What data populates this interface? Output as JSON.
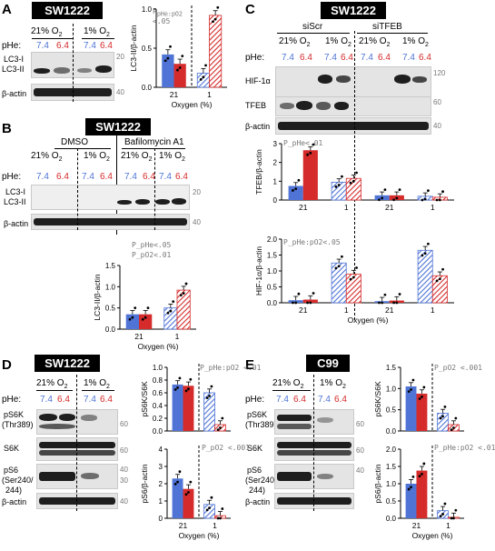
{
  "panels": {
    "A": {
      "letter": "A",
      "title": "SW1222"
    },
    "B": {
      "letter": "B",
      "title": "SW1222",
      "cond1": "DMSO",
      "cond2": "Bafilomycin A1"
    },
    "C": {
      "letter": "C",
      "title": "SW1222",
      "cond1": "siScr",
      "cond2": "siTFEB"
    },
    "D": {
      "letter": "D",
      "title": "SW1222"
    },
    "E": {
      "letter": "E",
      "title": "C99"
    }
  },
  "labels": {
    "o2_21": "21% O",
    "o2_1": "1% O",
    "sub2": "2",
    "phe": "pHe:",
    "ph74": "7.4",
    "ph64": "6.4",
    "lc3": "LC3-I\nLC3-II",
    "lc3_1": "LC3-I",
    "lc3_2": "LC3-II",
    "bactin": "β-actin",
    "hif": "HIF-1α",
    "tfeb": "TFEB",
    "ps6k1": "pS6K",
    "ps6k2": "(Thr389)",
    "s6k": "S6K",
    "ps6_1": "pS6",
    "ps6_2": "(Ser240/",
    "ps6_3": "244)",
    "oxygen": "Oxygen (%)",
    "x21": "21",
    "x1": "1"
  },
  "mw": {
    "m20": "20",
    "m40": "40",
    "m120": "120",
    "m60": "60",
    "m30": "30"
  },
  "stats": {
    "A": [
      "P",
      "pHe:pO2",
      "<.05"
    ],
    "B1": "P_pHe<.05",
    "B2": "P_pO2<.01",
    "C1": "P_pHe<.01",
    "C2": "P_pHe:pO2<.05",
    "D1": "P_pHe:pO2 <.01",
    "D2": "P_pO2 <.001",
    "E1": "P_pO2 <.001",
    "E2": "P_pHe:pO2 <.01"
  },
  "colors": {
    "blue": "#4f74d6",
    "red": "#d52b2b"
  },
  "chart_data": [
    {
      "panel": "A",
      "type": "bar",
      "ylabel": "LC3-II/β-actin",
      "ylim": [
        0,
        1.0
      ],
      "yticks": [
        0,
        0.5,
        1.0
      ],
      "categories": [
        "21",
        "1"
      ],
      "series": [
        {
          "name": "7.4",
          "values": [
            0.42,
            0.18
          ]
        },
        {
          "name": "6.4",
          "values": [
            0.3,
            0.92
          ]
        }
      ]
    },
    {
      "panel": "B",
      "type": "bar",
      "ylabel": "LC3-II/β-actin",
      "ylim": [
        0,
        1.5
      ],
      "yticks": [
        0,
        0.5,
        1.0,
        1.5
      ],
      "categories": [
        "21",
        "1"
      ],
      "series": [
        {
          "name": "7.4",
          "values": [
            0.35,
            0.5
          ]
        },
        {
          "name": "6.4",
          "values": [
            0.35,
            0.92
          ]
        }
      ]
    },
    {
      "panel": "C-TFEB",
      "type": "bar",
      "ylabel": "TFEB/β-actin",
      "ylim": [
        0,
        3
      ],
      "yticks": [
        0,
        1,
        2,
        3
      ],
      "categories": [
        "21",
        "1",
        "21",
        "1"
      ],
      "series": [
        {
          "name": "7.4",
          "values": [
            0.75,
            0.95,
            0.25,
            0.2
          ]
        },
        {
          "name": "6.4",
          "values": [
            2.65,
            1.15,
            0.25,
            0.15
          ]
        }
      ]
    },
    {
      "panel": "C-HIF",
      "type": "bar",
      "ylabel": "HIF-1α/β-actin",
      "ylim": [
        0,
        2.0
      ],
      "yticks": [
        0,
        0.5,
        1.0,
        1.5,
        2.0
      ],
      "categories": [
        "21",
        "1",
        "21",
        "1"
      ],
      "series": [
        {
          "name": "7.4",
          "values": [
            0.08,
            1.25,
            0.05,
            1.65
          ]
        },
        {
          "name": "6.4",
          "values": [
            0.1,
            0.9,
            0.07,
            0.85
          ]
        }
      ]
    },
    {
      "panel": "D-S6K",
      "type": "bar",
      "ylabel": "pS6K/S6K",
      "ylim": [
        0,
        1.0
      ],
      "yticks": [
        0,
        0.2,
        0.4,
        0.6,
        0.8,
        1.0
      ],
      "categories": [
        "21",
        "1"
      ],
      "series": [
        {
          "name": "7.4",
          "values": [
            0.73,
            0.6
          ]
        },
        {
          "name": "6.4",
          "values": [
            0.71,
            0.1
          ]
        }
      ]
    },
    {
      "panel": "D-S6",
      "type": "bar",
      "ylabel": "pS6/β-actin",
      "ylim": [
        0,
        4
      ],
      "yticks": [
        0,
        1,
        2,
        3,
        4
      ],
      "categories": [
        "21",
        "1"
      ],
      "series": [
        {
          "name": "7.4",
          "values": [
            2.3,
            0.8
          ]
        },
        {
          "name": "6.4",
          "values": [
            1.7,
            0.15
          ]
        }
      ]
    },
    {
      "panel": "E-S6K",
      "type": "bar",
      "ylabel": "pS6K/S6K",
      "ylim": [
        0,
        1.5
      ],
      "yticks": [
        0,
        0.5,
        1.0,
        1.5
      ],
      "categories": [
        "21",
        "1"
      ],
      "series": [
        {
          "name": "7.4",
          "values": [
            1.05,
            0.42
          ]
        },
        {
          "name": "6.4",
          "values": [
            0.88,
            0.15
          ]
        }
      ]
    },
    {
      "panel": "E-S6",
      "type": "bar",
      "ylabel": "pS6/β-actin",
      "ylim": [
        0,
        2.0
      ],
      "yticks": [
        0,
        0.5,
        1.0,
        1.5,
        2.0
      ],
      "categories": [
        "21",
        "1"
      ],
      "series": [
        {
          "name": "7.4",
          "values": [
            1.0,
            0.22
          ]
        },
        {
          "name": "6.4",
          "values": [
            1.38,
            0.03
          ]
        }
      ]
    }
  ]
}
